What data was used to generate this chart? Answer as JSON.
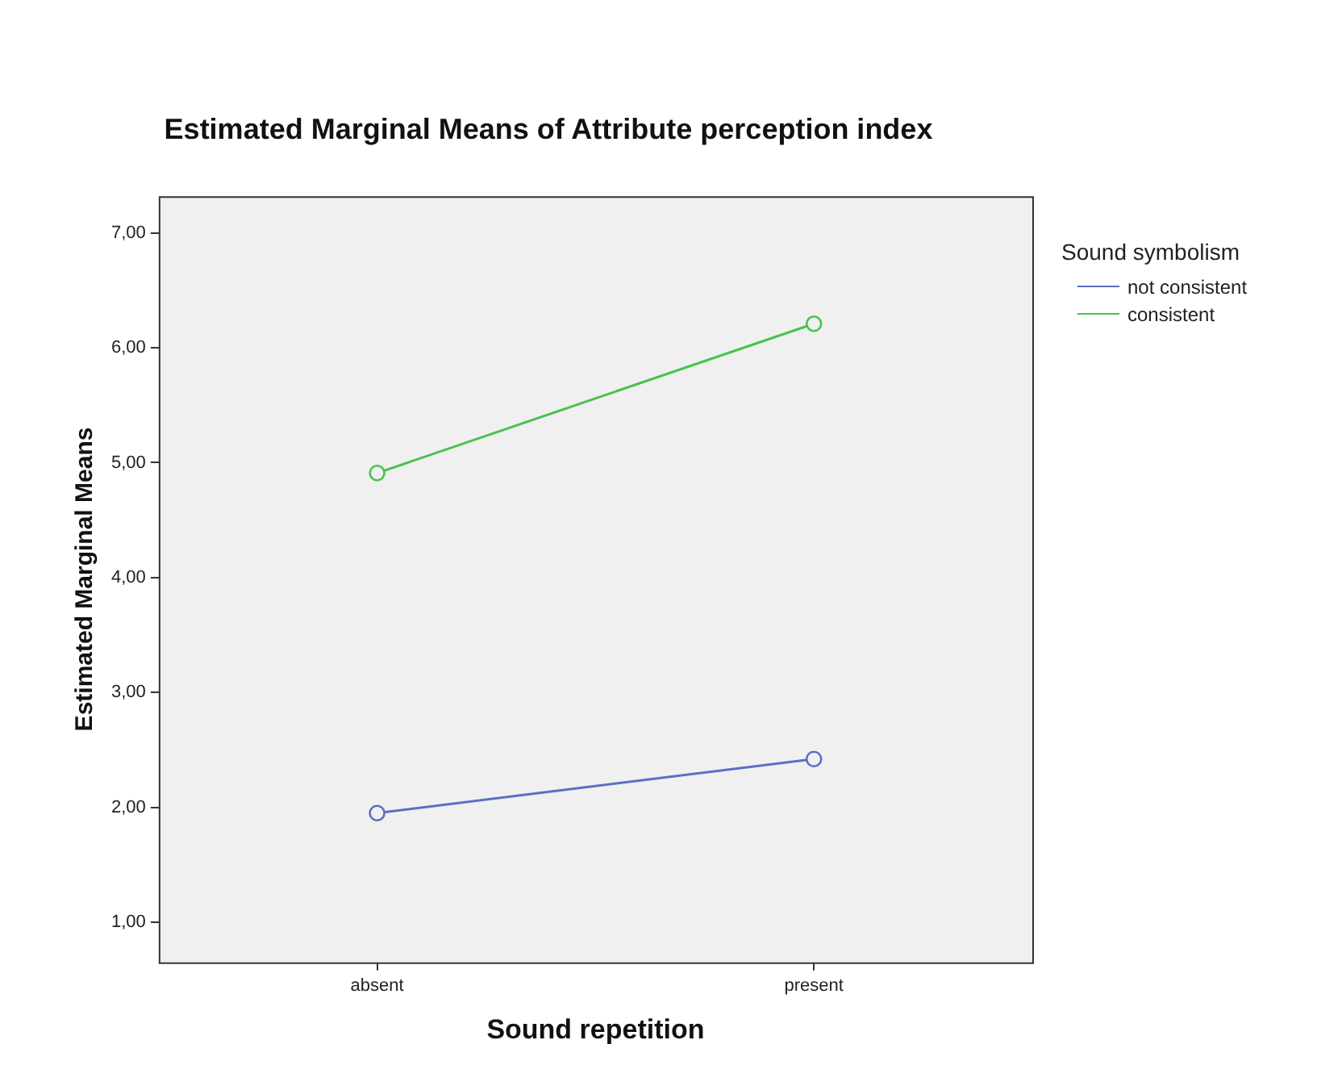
{
  "chart_data": {
    "type": "line",
    "title": "Estimated Marginal Means of Attribute perception index",
    "xlabel": "Sound repetition",
    "ylabel": "Estimated Marginal Means",
    "legend_title": "Sound symbolism",
    "categories": [
      "absent",
      "present"
    ],
    "series": [
      {
        "name": "not consistent",
        "color": "#5b6fc2",
        "values": [
          1.95,
          2.42
        ]
      },
      {
        "name": "consistent",
        "color": "#48c24e",
        "values": [
          4.91,
          6.21
        ]
      }
    ],
    "ylim": [
      0.65,
      7.32
    ],
    "yticks": [
      {
        "value": 1,
        "label": "1,00"
      },
      {
        "value": 2,
        "label": "2,00"
      },
      {
        "value": 3,
        "label": "3,00"
      },
      {
        "value": 4,
        "label": "4,00"
      },
      {
        "value": 5,
        "label": "5,00"
      },
      {
        "value": 6,
        "label": "6,00"
      },
      {
        "value": 7,
        "label": "7,00"
      }
    ],
    "grid": false,
    "legend": "top right",
    "marker": "circle",
    "line_style": "solid"
  }
}
